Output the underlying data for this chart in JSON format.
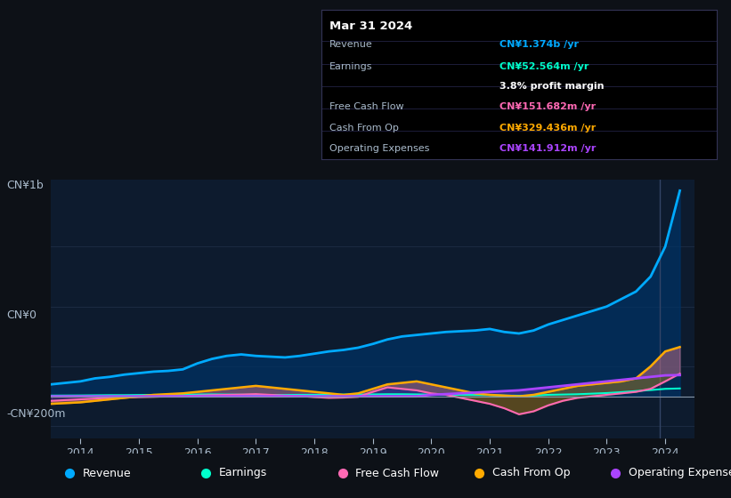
{
  "bg_color": "#0d1117",
  "plot_bg_color": "#0d1b2e",
  "grid_color": "#1e2d45",
  "title_label": "CN¥1b",
  "y0_label": "CN¥0",
  "yneg_label": "-CN¥200m",
  "x_ticks": [
    2014,
    2015,
    2016,
    2017,
    2018,
    2019,
    2020,
    2021,
    2022,
    2023,
    2024
  ],
  "ylim": [
    -280000000,
    1450000000
  ],
  "xlim": [
    2013.5,
    2024.5
  ],
  "revenue_color": "#00aaff",
  "earnings_color": "#00ffcc",
  "fcf_color": "#ff69b4",
  "cashfromop_color": "#ffaa00",
  "opex_color": "#aa44ff",
  "revenue_fill_color": "#003366",
  "tooltip_bg": "#000000",
  "tooltip_border": "#333355",
  "legend_items": [
    {
      "label": "Revenue",
      "color": "#00aaff"
    },
    {
      "label": "Earnings",
      "color": "#00ffcc"
    },
    {
      "label": "Free Cash Flow",
      "color": "#ff69b4"
    },
    {
      "label": "Cash From Op",
      "color": "#ffaa00"
    },
    {
      "label": "Operating Expenses",
      "color": "#aa44ff"
    }
  ],
  "tooltip": {
    "date": "Mar 31 2024",
    "revenue_label": "Revenue",
    "revenue_value": "CN¥1.374b /yr",
    "earnings_label": "Earnings",
    "earnings_value": "CN¥52.564m /yr",
    "margin_value": "3.8% profit margin",
    "fcf_label": "Free Cash Flow",
    "fcf_value": "CN¥151.682m /yr",
    "cashop_label": "Cash From Op",
    "cashop_value": "CN¥329.436m /yr",
    "opex_label": "Operating Expenses",
    "opex_value": "CN¥141.912m /yr"
  },
  "years": [
    2013.5,
    2014.0,
    2014.25,
    2014.5,
    2014.75,
    2015.0,
    2015.25,
    2015.5,
    2015.75,
    2016.0,
    2016.25,
    2016.5,
    2016.75,
    2017.0,
    2017.25,
    2017.5,
    2017.75,
    2018.0,
    2018.25,
    2018.5,
    2018.75,
    2019.0,
    2019.25,
    2019.5,
    2019.75,
    2020.0,
    2020.25,
    2020.5,
    2020.75,
    2021.0,
    2021.25,
    2021.5,
    2021.75,
    2022.0,
    2022.25,
    2022.5,
    2022.75,
    2023.0,
    2023.25,
    2023.5,
    2023.75,
    2024.0,
    2024.25
  ],
  "revenue": [
    80000000,
    100000000,
    120000000,
    130000000,
    145000000,
    155000000,
    165000000,
    170000000,
    180000000,
    220000000,
    250000000,
    270000000,
    280000000,
    270000000,
    265000000,
    260000000,
    270000000,
    285000000,
    300000000,
    310000000,
    325000000,
    350000000,
    380000000,
    400000000,
    410000000,
    420000000,
    430000000,
    435000000,
    440000000,
    450000000,
    430000000,
    420000000,
    440000000,
    480000000,
    510000000,
    540000000,
    570000000,
    600000000,
    650000000,
    700000000,
    800000000,
    1000000000,
    1374000000
  ],
  "earnings": [
    5000000,
    6000000,
    7000000,
    8000000,
    8000000,
    9000000,
    10000000,
    10000000,
    11000000,
    12000000,
    13000000,
    12000000,
    11000000,
    10000000,
    9000000,
    9000000,
    10000000,
    10000000,
    11000000,
    12000000,
    12000000,
    13000000,
    14000000,
    14000000,
    13000000,
    12000000,
    11000000,
    10000000,
    9000000,
    8000000,
    5000000,
    4000000,
    5000000,
    10000000,
    12000000,
    14000000,
    18000000,
    22000000,
    28000000,
    35000000,
    42000000,
    50000000,
    52564000
  ],
  "fcf": [
    -30000000,
    -20000000,
    -15000000,
    -10000000,
    -8000000,
    -5000000,
    -3000000,
    0,
    2000000,
    5000000,
    8000000,
    10000000,
    12000000,
    15000000,
    10000000,
    5000000,
    2000000,
    -5000000,
    -10000000,
    -8000000,
    -3000000,
    30000000,
    60000000,
    50000000,
    40000000,
    20000000,
    10000000,
    -10000000,
    -30000000,
    -50000000,
    -80000000,
    -120000000,
    -100000000,
    -60000000,
    -30000000,
    -10000000,
    0,
    10000000,
    20000000,
    30000000,
    50000000,
    100000000,
    151682000
  ],
  "cashfromop": [
    -50000000,
    -40000000,
    -30000000,
    -20000000,
    -10000000,
    0,
    10000000,
    15000000,
    20000000,
    30000000,
    40000000,
    50000000,
    60000000,
    70000000,
    60000000,
    50000000,
    40000000,
    30000000,
    20000000,
    10000000,
    20000000,
    50000000,
    80000000,
    90000000,
    100000000,
    80000000,
    60000000,
    40000000,
    20000000,
    10000000,
    5000000,
    0,
    10000000,
    30000000,
    50000000,
    70000000,
    80000000,
    90000000,
    100000000,
    120000000,
    200000000,
    300000000,
    329436000
  ],
  "opex": [
    0,
    0,
    0,
    0,
    0,
    0,
    0,
    0,
    0,
    0,
    0,
    0,
    0,
    0,
    0,
    0,
    0,
    0,
    0,
    0,
    0,
    0,
    0,
    0,
    0,
    10000000,
    15000000,
    20000000,
    25000000,
    30000000,
    35000000,
    40000000,
    50000000,
    60000000,
    70000000,
    80000000,
    90000000,
    100000000,
    110000000,
    120000000,
    130000000,
    140000000,
    141912000
  ]
}
